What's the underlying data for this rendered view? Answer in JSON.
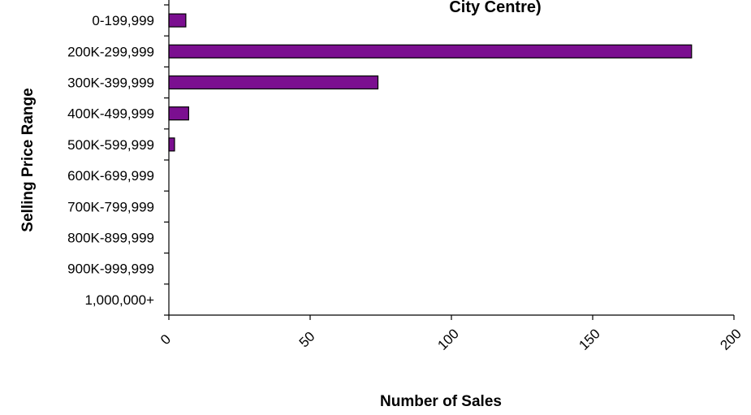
{
  "chart_data": {
    "type": "bar",
    "orientation": "horizontal",
    "title": "City Centre)",
    "xlabel": "Number of Sales",
    "ylabel": "Selling Price Range",
    "categories": [
      "0-199,999",
      "200K-299,999",
      "300K-399,999",
      "400K-499,999",
      "500K-599,999",
      "600K-699,999",
      "700K-799,999",
      "800K-899,999",
      "900K-999,999",
      "1,000,000+"
    ],
    "values": [
      6,
      185,
      74,
      7,
      2,
      0,
      0,
      0,
      0,
      0
    ],
    "xlim": [
      0,
      200
    ],
    "xticks": [
      0,
      50,
      100,
      150,
      200
    ],
    "grid": false,
    "legend": "none",
    "bar_color": "#7B0F90",
    "bar_edge_color": "#000000"
  }
}
